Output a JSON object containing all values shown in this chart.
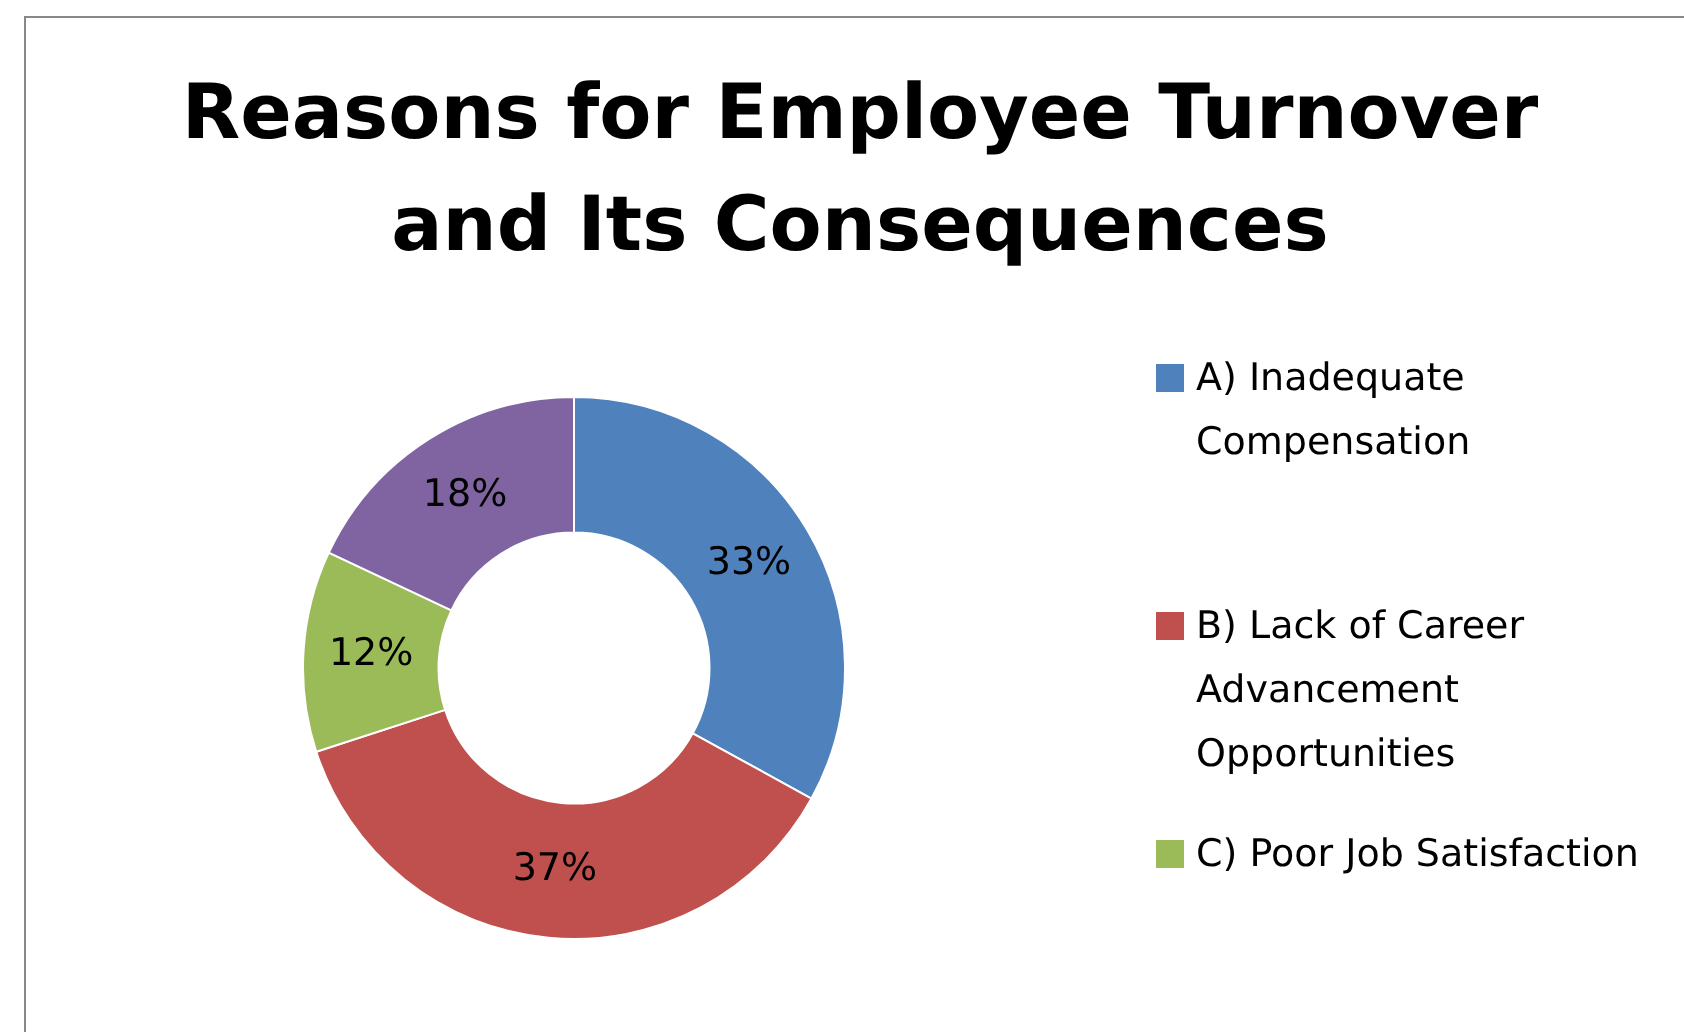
{
  "chart_data": {
    "type": "donut",
    "title": "Reasons for Employee Turnover and Its Consequences",
    "categories": [
      "A) Inadequate Compensation",
      "B) Lack of Career Advancement Opportunities",
      "C) Poor Job Satisfaction",
      null
    ],
    "values": [
      33,
      37,
      12,
      18
    ],
    "colors": [
      "#4f81bd",
      "#c0504d",
      "#9bbb59",
      "#8064a2"
    ],
    "value_labels": [
      "33%",
      "37%",
      "12%",
      "18%"
    ],
    "legend": "right"
  }
}
